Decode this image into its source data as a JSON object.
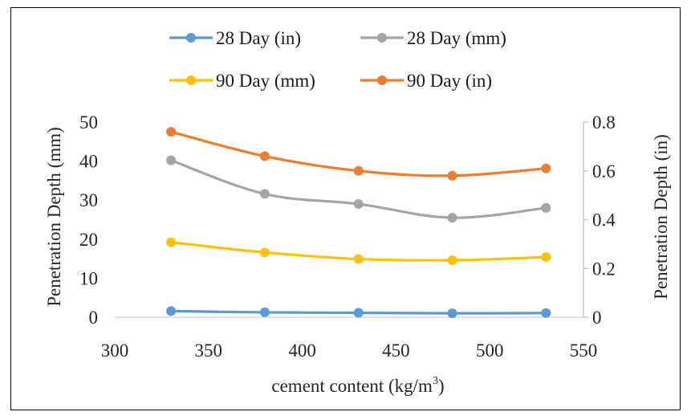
{
  "chart_data": {
    "type": "line",
    "x": [
      330,
      380,
      430,
      480,
      530
    ],
    "series": [
      {
        "name": "28 Day (in)",
        "axis": "right",
        "color": "#5b9bd5",
        "values": [
          0.025,
          0.02,
          0.018,
          0.016,
          0.017
        ]
      },
      {
        "name": "28 Day (mm)",
        "axis": "left",
        "color": "#a5a5a5",
        "values": [
          40.2,
          31.6,
          29.0,
          25.5,
          28.0
        ]
      },
      {
        "name": "90 Day (mm)",
        "axis": "left",
        "color": "#ffc000",
        "values": [
          19.2,
          16.6,
          14.9,
          14.6,
          15.4
        ]
      },
      {
        "name": "90 Day (in)",
        "axis": "right",
        "color": "#ed7d31",
        "values": [
          0.76,
          0.66,
          0.6,
          0.58,
          0.61
        ]
      }
    ],
    "xlabel_main": "cement content (kg/m",
    "xlabel_sup": "3",
    "xlabel_end": ")",
    "ylabel_left": "Penetration Depth (mm)",
    "ylabel_right": "Penetration Depth (in)",
    "xlim": [
      300,
      550
    ],
    "ylim_left": [
      0,
      50
    ],
    "ylim_right": [
      0,
      0.8
    ],
    "x_ticks": [
      "300",
      "350",
      "400",
      "450",
      "500",
      "550"
    ],
    "y_left_ticks": [
      "0",
      "10",
      "20",
      "30",
      "40",
      "50"
    ],
    "y_right_ticks": [
      "0",
      "0.2",
      "0.4",
      "0.6",
      "0.8"
    ],
    "grid": false,
    "legend_position": "top"
  }
}
